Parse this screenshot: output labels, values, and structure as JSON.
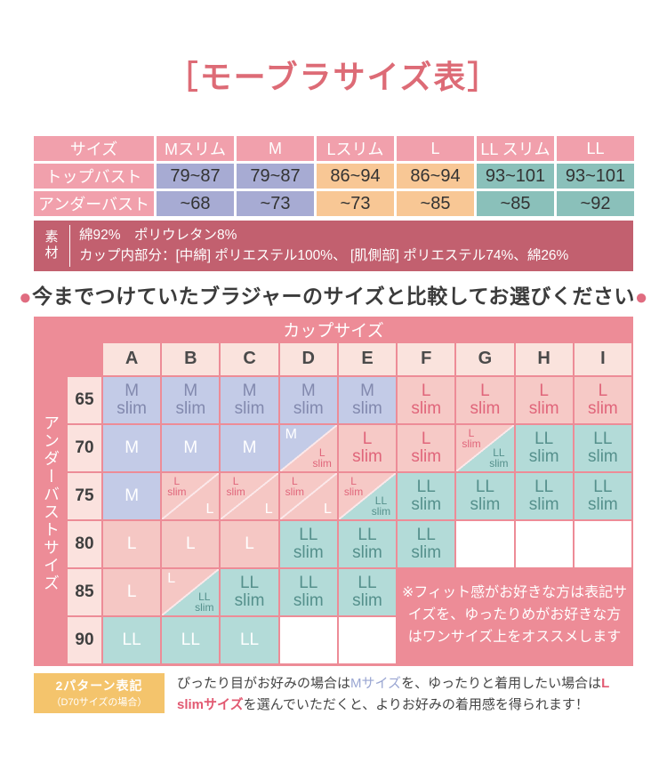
{
  "title": "［モーブラサイズ表］",
  "size_table": {
    "header": [
      "サイズ",
      "Mスリム",
      "M",
      "Lスリム",
      "L",
      "LL スリム",
      "LL"
    ],
    "column_tints": [
      "lav",
      "lav",
      "peach",
      "peach",
      "teal",
      "teal"
    ],
    "rows": [
      {
        "label": "トップバスト",
        "values": [
          "79~87",
          "79~87",
          "86~94",
          "86~94",
          "93~101",
          "93~101"
        ]
      },
      {
        "label": "アンダーバスト",
        "values": [
          "~68",
          "~73",
          "~73",
          "~85",
          "~85",
          "~92"
        ]
      }
    ]
  },
  "material": {
    "label": "素\n材",
    "line1": "綿92%　ポリウレタン8%",
    "line2": "カップ内部分：[中綿] ポリエステル100%、 [肌側部] ポリエステル74%、綿26%"
  },
  "headline": {
    "bullet": "●",
    "text": "今までつけていたブラジャーのサイズと比較してお選びください"
  },
  "matrix": {
    "top_header": "カップサイズ",
    "left_header": "アンダーバストサイズ",
    "columns": [
      "A",
      "B",
      "C",
      "D",
      "E",
      "F",
      "G",
      "H",
      "I"
    ],
    "rows": [
      "65",
      "70",
      "75",
      "80",
      "85",
      "90"
    ],
    "cells": [
      [
        {
          "t": "s",
          "v": "M\nslim",
          "k": "mslim"
        },
        {
          "t": "s",
          "v": "M\nslim",
          "k": "mslim"
        },
        {
          "t": "s",
          "v": "M\nslim",
          "k": "mslim"
        },
        {
          "t": "s",
          "v": "M\nslim",
          "k": "mslim"
        },
        {
          "t": "s",
          "v": "M\nslim",
          "k": "mslim"
        },
        {
          "t": "s",
          "v": "L\nslim",
          "k": "lslim"
        },
        {
          "t": "s",
          "v": "L\nslim",
          "k": "lslim"
        },
        {
          "t": "s",
          "v": "L\nslim",
          "k": "lslim"
        },
        {
          "t": "s",
          "v": "L\nslim",
          "k": "lslim"
        }
      ],
      [
        {
          "t": "s",
          "v": "M",
          "k": "m"
        },
        {
          "t": "s",
          "v": "M",
          "k": "m"
        },
        {
          "t": "s",
          "v": "M",
          "k": "m"
        },
        {
          "t": "d",
          "tl": {
            "v": "M",
            "k": "m"
          },
          "br": {
            "v": "L\nslim",
            "k": "lslim"
          }
        },
        {
          "t": "s",
          "v": "L\nslim",
          "k": "lslim"
        },
        {
          "t": "s",
          "v": "L\nslim",
          "k": "lslim"
        },
        {
          "t": "d",
          "tl": {
            "v": "L\nslim",
            "k": "lslim"
          },
          "br": {
            "v": "LL\nslim",
            "k": "llslim"
          }
        },
        {
          "t": "s",
          "v": "LL\nslim",
          "k": "llslim"
        },
        {
          "t": "s",
          "v": "LL\nslim",
          "k": "llslim"
        }
      ],
      [
        {
          "t": "s",
          "v": "M",
          "k": "m"
        },
        {
          "t": "d",
          "tl": {
            "v": "L\nslim",
            "k": "lslim"
          },
          "br": {
            "v": "L",
            "k": "l"
          }
        },
        {
          "t": "d",
          "tl": {
            "v": "L\nslim",
            "k": "lslim"
          },
          "br": {
            "v": "L",
            "k": "l"
          }
        },
        {
          "t": "d",
          "tl": {
            "v": "L\nslim",
            "k": "lslim"
          },
          "br": {
            "v": "L",
            "k": "l"
          }
        },
        {
          "t": "d",
          "tl": {
            "v": "L\nslim",
            "k": "lslim"
          },
          "br": {
            "v": "LL\nslim",
            "k": "llslim"
          }
        },
        {
          "t": "s",
          "v": "LL\nslim",
          "k": "llslim"
        },
        {
          "t": "s",
          "v": "LL\nslim",
          "k": "llslim"
        },
        {
          "t": "s",
          "v": "LL\nslim",
          "k": "llslim"
        },
        {
          "t": "s",
          "v": "LL\nslim",
          "k": "llslim"
        }
      ],
      [
        {
          "t": "s",
          "v": "L",
          "k": "l"
        },
        {
          "t": "s",
          "v": "L",
          "k": "l"
        },
        {
          "t": "s",
          "v": "L",
          "k": "l"
        },
        {
          "t": "s",
          "v": "LL\nslim",
          "k": "llslim"
        },
        {
          "t": "s",
          "v": "LL\nslim",
          "k": "llslim"
        },
        {
          "t": "s",
          "v": "LL\nslim",
          "k": "llslim"
        },
        {
          "t": "s",
          "v": "",
          "k": "empty"
        },
        {
          "t": "s",
          "v": "",
          "k": "empty"
        },
        {
          "t": "s",
          "v": "",
          "k": "empty"
        }
      ],
      [
        {
          "t": "s",
          "v": "L",
          "k": "l"
        },
        {
          "t": "d",
          "tl": {
            "v": "L",
            "k": "l"
          },
          "br": {
            "v": "LL\nslim",
            "k": "llslim"
          }
        },
        {
          "t": "s",
          "v": "LL\nslim",
          "k": "llslim"
        },
        {
          "t": "s",
          "v": "LL\nslim",
          "k": "llslim"
        },
        {
          "t": "s",
          "v": "LL\nslim",
          "k": "llslim"
        },
        {
          "t": "x"
        },
        {
          "t": "x"
        },
        {
          "t": "x"
        },
        {
          "t": "x"
        }
      ],
      [
        {
          "t": "s",
          "v": "LL",
          "k": "ll"
        },
        {
          "t": "s",
          "v": "LL",
          "k": "ll"
        },
        {
          "t": "s",
          "v": "LL",
          "k": "ll"
        },
        {
          "t": "s",
          "v": "",
          "k": "empty"
        },
        {
          "t": "s",
          "v": "",
          "k": "empty"
        },
        {
          "t": "x"
        },
        {
          "t": "x"
        },
        {
          "t": "x"
        },
        {
          "t": "x"
        }
      ]
    ],
    "note": "※フィット感がお好きな方は表記サ\nイズを、ゆったりめがお好きな方\nはワンサイズ上をオススメします"
  },
  "palette": {
    "mslim": {
      "bg": "#c3cbe7",
      "fg": "#8289ae"
    },
    "m": {
      "bg": "#c3cbe7",
      "fg": "#ffffff"
    },
    "lslim": {
      "bg": "#f6c9c6",
      "fg": "#e0657a"
    },
    "l": {
      "bg": "#f5c7c4",
      "fg": "#ffffff"
    },
    "llslim": {
      "bg": "#b3dbd8",
      "fg": "#55908c"
    },
    "ll": {
      "bg": "#b3dbd8",
      "fg": "#ffffff"
    },
    "empty": {
      "bg": "#ffffff",
      "fg": "#333333"
    },
    "accent_pink": "#ed8c97",
    "rose": "#c2606f",
    "orange": "#f4c46c",
    "title_color": "#dd6b76"
  },
  "bottom": {
    "badge_line1": "2パターン表記",
    "badge_line2": "（D70サイズの場合）",
    "text_parts": [
      {
        "t": "ぴったり目がお好みの場合は",
        "c": "plain"
      },
      {
        "t": "Mサイズ",
        "c": "m"
      },
      {
        "t": "を、ゆったりと着用したい場合は",
        "c": "plain"
      },
      {
        "t": "L slimサイズ",
        "c": "l"
      },
      {
        "t": "を選んでいただくと、よりお好みの着用感を得られます！",
        "c": "plain"
      }
    ]
  }
}
